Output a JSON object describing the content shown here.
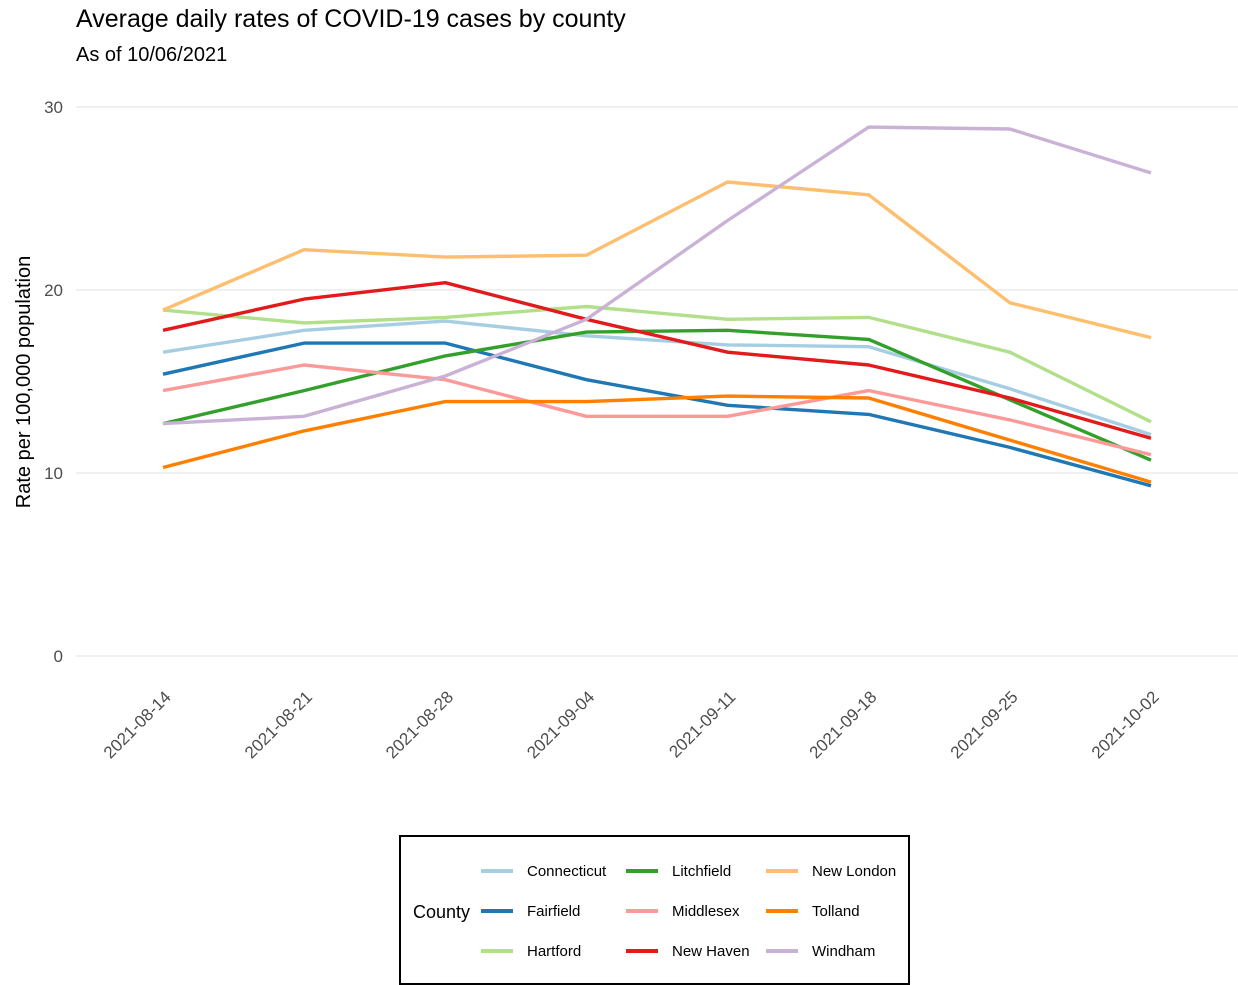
{
  "chart_data": {
    "type": "line",
    "title": "Average daily rates of COVID-19 cases by county",
    "subtitle": "As of 10/06/2021",
    "xlabel": "",
    "ylabel": "Rate per 100,000 population",
    "ylim": [
      0,
      30
    ],
    "yticks": [
      "0",
      "10",
      "20",
      "30"
    ],
    "x": [
      "2021-08-14",
      "2021-08-21",
      "2021-08-28",
      "2021-09-04",
      "2021-09-11",
      "2021-09-18",
      "2021-09-25",
      "2021-10-02"
    ],
    "grid": true,
    "legend": {
      "title": "County",
      "position": "bottom"
    },
    "series": [
      {
        "name": "Connecticut",
        "color": "#a6cee3",
        "values": [
          16.6,
          17.8,
          18.3,
          17.5,
          17.0,
          16.9,
          14.6,
          12.1
        ]
      },
      {
        "name": "Fairfield",
        "color": "#1f78b4",
        "values": [
          15.4,
          17.1,
          17.1,
          15.1,
          13.7,
          13.2,
          11.4,
          9.3
        ]
      },
      {
        "name": "Hartford",
        "color": "#b2df8a",
        "values": [
          18.9,
          18.2,
          18.5,
          19.1,
          18.4,
          18.5,
          16.6,
          12.8
        ]
      },
      {
        "name": "Litchfield",
        "color": "#33a02c",
        "values": [
          12.7,
          14.5,
          16.4,
          17.7,
          17.8,
          17.3,
          14.0,
          10.7
        ]
      },
      {
        "name": "Middlesex",
        "color": "#fb9a99",
        "values": [
          14.5,
          15.9,
          15.1,
          13.1,
          13.1,
          14.5,
          12.9,
          11.0
        ]
      },
      {
        "name": "New Haven",
        "color": "#e31a1c",
        "values": [
          17.8,
          19.5,
          20.4,
          18.4,
          16.6,
          15.9,
          14.1,
          11.9
        ]
      },
      {
        "name": "New London",
        "color": "#fdbf6f",
        "values": [
          18.9,
          22.2,
          21.8,
          21.9,
          25.9,
          25.2,
          19.3,
          17.4
        ]
      },
      {
        "name": "Tolland",
        "color": "#ff7f00",
        "values": [
          10.3,
          12.3,
          13.9,
          13.9,
          14.2,
          14.1,
          11.8,
          9.5
        ]
      },
      {
        "name": "Windham",
        "color": "#cab2d6",
        "values": [
          12.7,
          13.1,
          15.3,
          18.4,
          23.8,
          28.9,
          28.8,
          26.4
        ]
      }
    ]
  }
}
